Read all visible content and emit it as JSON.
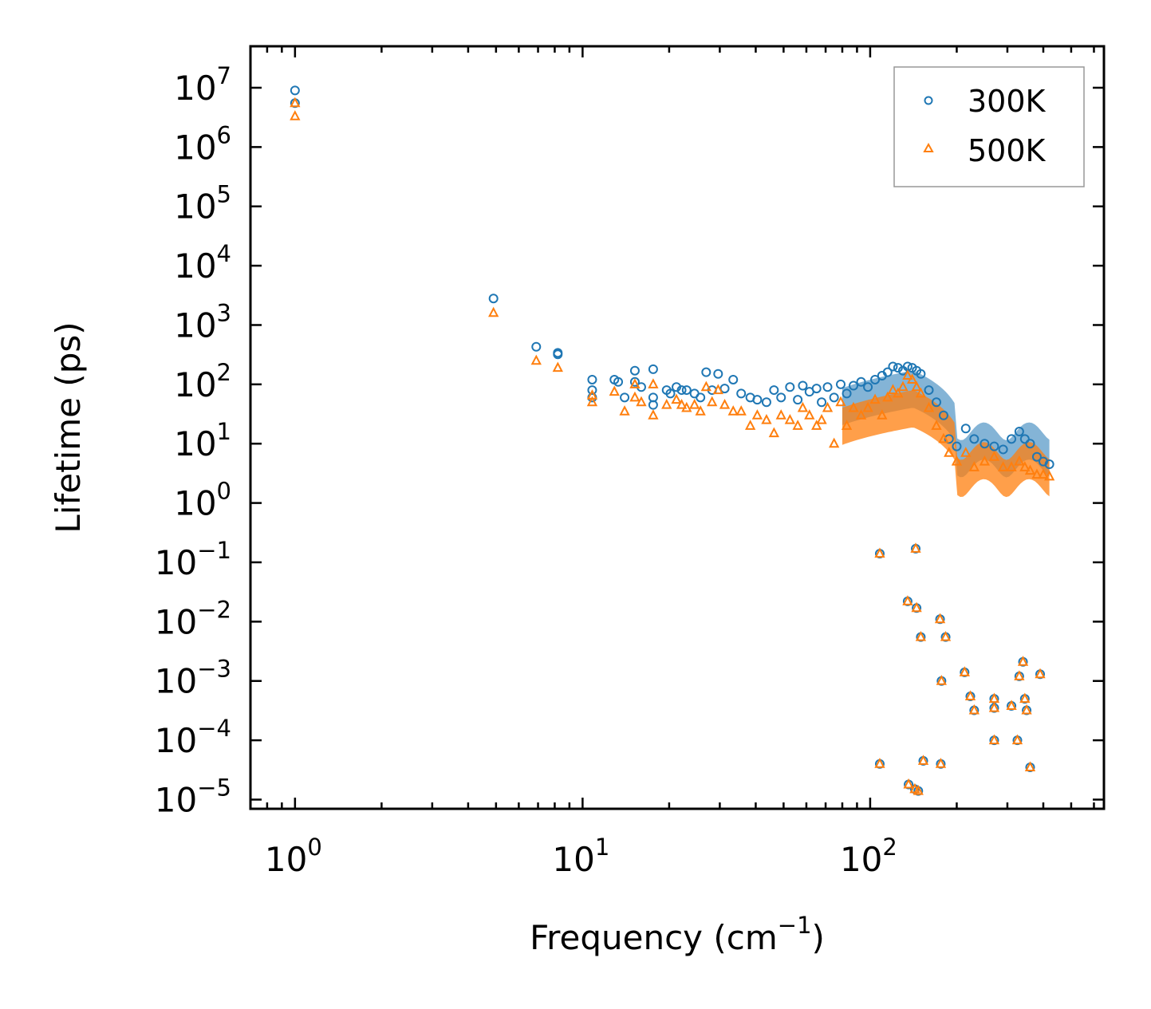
{
  "chart_data": {
    "type": "scatter",
    "title": "",
    "xlabel": "Frequency (cm",
    "xlabel_sup": "−1",
    "xlabel_tail": ")",
    "ylabel": "Lifetime (ps)",
    "xscale": "log",
    "yscale": "log",
    "xlim": [
      0.7,
      650
    ],
    "ylim": [
      7e-06,
      50000000.0
    ],
    "legend_position": "top-right",
    "x_ticks": [
      {
        "value": 1,
        "base": "10",
        "exp": "0"
      },
      {
        "value": 10,
        "base": "10",
        "exp": "1"
      },
      {
        "value": 100,
        "base": "10",
        "exp": "2"
      }
    ],
    "y_ticks": [
      {
        "value": 10000000.0,
        "base": "10",
        "exp": "7"
      },
      {
        "value": 1000000.0,
        "base": "10",
        "exp": "6"
      },
      {
        "value": 100000.0,
        "base": "10",
        "exp": "5"
      },
      {
        "value": 10000.0,
        "base": "10",
        "exp": "4"
      },
      {
        "value": 1000.0,
        "base": "10",
        "exp": "3"
      },
      {
        "value": 100.0,
        "base": "10",
        "exp": "2"
      },
      {
        "value": 10.0,
        "base": "10",
        "exp": "1"
      },
      {
        "value": 1.0,
        "base": "10",
        "exp": "0"
      },
      {
        "value": 0.1,
        "base": "10",
        "exp": "−1"
      },
      {
        "value": 0.01,
        "base": "10",
        "exp": "−2"
      },
      {
        "value": 0.001,
        "base": "10",
        "exp": "−3"
      },
      {
        "value": 0.0001,
        "base": "10",
        "exp": "−4"
      },
      {
        "value": 1e-05,
        "base": "10",
        "exp": "−5"
      }
    ],
    "series": [
      {
        "name": "300K",
        "marker": "circle",
        "color": "#1f77b4",
        "points": [
          [
            1.0,
            9000000.0
          ],
          [
            1.0,
            5500000.0
          ],
          [
            4.9,
            2800
          ],
          [
            6.9,
            430
          ],
          [
            8.2,
            340
          ],
          [
            8.2,
            320
          ],
          [
            10.8,
            120
          ],
          [
            10.8,
            80
          ],
          [
            10.8,
            60
          ],
          [
            12.9,
            120
          ],
          [
            13.3,
            110
          ],
          [
            14.0,
            60
          ],
          [
            15.2,
            170
          ],
          [
            15.2,
            110
          ],
          [
            16.0,
            90
          ],
          [
            17.6,
            180
          ],
          [
            17.6,
            60
          ],
          [
            17.6,
            45
          ],
          [
            19.6,
            80
          ],
          [
            20.2,
            70
          ],
          [
            21.2,
            90
          ],
          [
            22.1,
            80
          ],
          [
            23.0,
            80
          ],
          [
            24.5,
            70
          ],
          [
            25.7,
            60
          ],
          [
            26.9,
            160
          ],
          [
            28.2,
            80
          ],
          [
            29.6,
            150
          ],
          [
            31.2,
            85
          ],
          [
            33.4,
            120
          ],
          [
            35.6,
            70
          ],
          [
            38.3,
            60
          ],
          [
            40.5,
            55
          ],
          [
            43.6,
            50
          ],
          [
            46.3,
            80
          ],
          [
            49.0,
            60
          ],
          [
            52.6,
            90
          ],
          [
            56.0,
            55
          ],
          [
            58.3,
            95
          ],
          [
            61.5,
            75
          ],
          [
            65.1,
            85
          ],
          [
            67.8,
            50
          ],
          [
            71.1,
            90
          ],
          [
            74.9,
            60
          ],
          [
            79.0,
            100
          ],
          [
            82.9,
            70
          ],
          [
            87.5,
            95
          ],
          [
            93.0,
            110
          ],
          [
            98.2,
            90
          ],
          [
            104,
            120
          ],
          [
            110,
            140
          ],
          [
            115,
            160
          ],
          [
            120,
            200
          ],
          [
            125,
            190
          ],
          [
            130,
            170
          ],
          [
            135,
            200
          ],
          [
            140,
            190
          ],
          [
            145,
            170
          ],
          [
            150,
            150
          ],
          [
            160,
            80
          ],
          [
            170,
            50
          ],
          [
            180,
            30
          ],
          [
            188,
            12
          ],
          [
            200,
            9
          ],
          [
            215,
            18
          ],
          [
            230,
            12
          ],
          [
            250,
            10
          ],
          [
            270,
            9
          ],
          [
            290,
            8
          ],
          [
            310,
            12
          ],
          [
            330,
            16
          ],
          [
            345,
            12
          ],
          [
            360,
            10
          ],
          [
            380,
            6
          ],
          [
            400,
            5
          ],
          [
            420,
            4.5
          ],
          [
            108,
            0.14
          ],
          [
            135,
            0.022
          ],
          [
            145,
            0.017
          ],
          [
            150,
            0.0055
          ],
          [
            175,
            0.011
          ],
          [
            183,
            0.0055
          ],
          [
            177,
            0.001
          ],
          [
            213,
            0.0014
          ],
          [
            223,
            0.00055
          ],
          [
            230,
            0.00032
          ],
          [
            270,
            0.0005
          ],
          [
            270,
            0.00035
          ],
          [
            310,
            0.00038
          ],
          [
            330,
            0.0012
          ],
          [
            340,
            0.0021
          ],
          [
            345,
            0.0005
          ],
          [
            350,
            0.00032
          ],
          [
            390,
            0.0013
          ],
          [
            270,
            0.0001
          ],
          [
            325,
            0.0001
          ],
          [
            360,
            3.5e-05
          ],
          [
            108,
            4e-05
          ],
          [
            136,
            1.8e-05
          ],
          [
            143,
            1.5e-05
          ],
          [
            147,
            1.4e-05
          ],
          [
            153,
            4.5e-05
          ],
          [
            176,
            4e-05
          ],
          [
            144,
            0.17
          ]
        ]
      },
      {
        "name": "500K",
        "marker": "triangle",
        "color": "#ff7f0e",
        "points": [
          [
            1.0,
            5500000.0
          ],
          [
            1.0,
            3300000.0
          ],
          [
            4.9,
            1600
          ],
          [
            6.9,
            250
          ],
          [
            8.2,
            190
          ],
          [
            10.8,
            65
          ],
          [
            10.8,
            50
          ],
          [
            12.9,
            75
          ],
          [
            14.0,
            35
          ],
          [
            15.2,
            100
          ],
          [
            15.2,
            60
          ],
          [
            16.0,
            50
          ],
          [
            17.6,
            100
          ],
          [
            17.6,
            30
          ],
          [
            19.6,
            45
          ],
          [
            21.2,
            55
          ],
          [
            22.1,
            45
          ],
          [
            23.0,
            40
          ],
          [
            24.5,
            45
          ],
          [
            25.7,
            35
          ],
          [
            26.9,
            90
          ],
          [
            28.2,
            50
          ],
          [
            29.6,
            80
          ],
          [
            31.2,
            45
          ],
          [
            33.4,
            35
          ],
          [
            35.6,
            35
          ],
          [
            38.3,
            20
          ],
          [
            40.5,
            30
          ],
          [
            43.6,
            25
          ],
          [
            46.3,
            15
          ],
          [
            49.0,
            30
          ],
          [
            52.6,
            25
          ],
          [
            56.0,
            20
          ],
          [
            58.3,
            40
          ],
          [
            61.5,
            30
          ],
          [
            65.1,
            20
          ],
          [
            67.8,
            25
          ],
          [
            71.1,
            40
          ],
          [
            74.9,
            10
          ],
          [
            79.0,
            50
          ],
          [
            82.9,
            20
          ],
          [
            87.5,
            40
          ],
          [
            93.0,
            30
          ],
          [
            98.2,
            40
          ],
          [
            104,
            55
          ],
          [
            110,
            30
          ],
          [
            115,
            60
          ],
          [
            120,
            80
          ],
          [
            125,
            70
          ],
          [
            130,
            90
          ],
          [
            135,
            140
          ],
          [
            140,
            120
          ],
          [
            145,
            90
          ],
          [
            150,
            70
          ],
          [
            160,
            40
          ],
          [
            170,
            20
          ],
          [
            180,
            12
          ],
          [
            188,
            7
          ],
          [
            200,
            5
          ],
          [
            215,
            7
          ],
          [
            230,
            4
          ],
          [
            250,
            5
          ],
          [
            270,
            6
          ],
          [
            290,
            4
          ],
          [
            310,
            4
          ],
          [
            330,
            5
          ],
          [
            345,
            4
          ],
          [
            360,
            3.5
          ],
          [
            380,
            3
          ],
          [
            400,
            3
          ],
          [
            420,
            2.8
          ],
          [
            108,
            0.14
          ],
          [
            135,
            0.022
          ],
          [
            145,
            0.017
          ],
          [
            150,
            0.0055
          ],
          [
            175,
            0.011
          ],
          [
            183,
            0.0055
          ],
          [
            177,
            0.001
          ],
          [
            213,
            0.0014
          ],
          [
            223,
            0.00055
          ],
          [
            230,
            0.00032
          ],
          [
            270,
            0.0005
          ],
          [
            270,
            0.00035
          ],
          [
            310,
            0.00038
          ],
          [
            330,
            0.0012
          ],
          [
            340,
            0.0021
          ],
          [
            345,
            0.0005
          ],
          [
            350,
            0.00032
          ],
          [
            390,
            0.0013
          ],
          [
            270,
            0.0001
          ],
          [
            325,
            0.0001
          ],
          [
            360,
            3.5e-05
          ],
          [
            108,
            4e-05
          ],
          [
            136,
            1.8e-05
          ],
          [
            143,
            1.5e-05
          ],
          [
            147,
            1.4e-05
          ],
          [
            153,
            4.5e-05
          ],
          [
            176,
            4e-05
          ],
          [
            144,
            0.17
          ]
        ]
      }
    ]
  }
}
